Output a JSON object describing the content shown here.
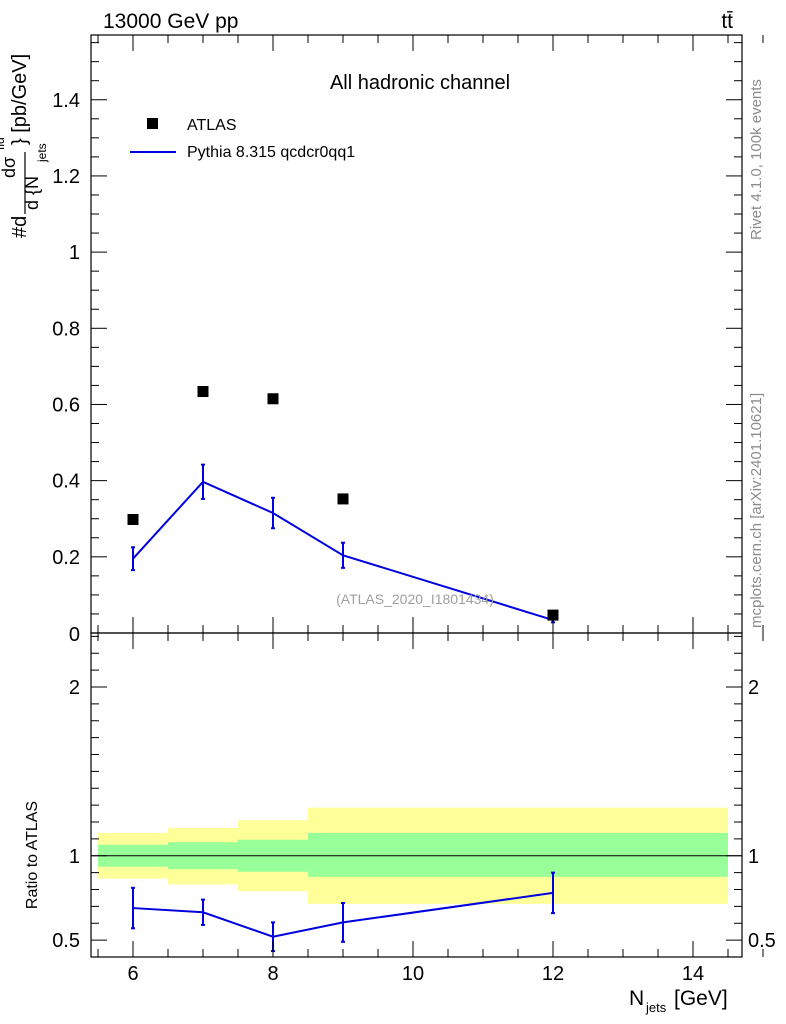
{
  "header": {
    "left": "13000 GeV pp",
    "right": "tt̄"
  },
  "side_text": {
    "rivet": "Rivet 4.1.0,  100k events",
    "mcplots": "mcplots.cern.ch [arXiv:2401.10621]"
  },
  "chart_data": [
    {
      "type": "scatter",
      "title": "All hadronic channel",
      "ylabel": {
        "prefix": "#d",
        "num": "dσ",
        "num_sup": "fid",
        "den": "d {N",
        "den_sub": "jets",
        "suffix": "} [pb/GeV]"
      },
      "xlim": [
        5.4,
        14.7
      ],
      "ylim": [
        0,
        1.57
      ],
      "yticks": [
        {
          "v": 0.2,
          "label": "0.2"
        },
        {
          "v": 0.4,
          "label": "0.4"
        },
        {
          "v": 0.6,
          "label": "0.6"
        },
        {
          "v": 0.8,
          "label": "0.8"
        },
        {
          "v": 1.0,
          "label": "1"
        },
        {
          "v": 1.2,
          "label": "1.2"
        },
        {
          "v": 1.4,
          "label": "1.4"
        }
      ],
      "series": [
        {
          "name": "ATLAS",
          "kind": "marker",
          "color": "#000000",
          "x": [
            6,
            7,
            8,
            9,
            12
          ],
          "y": [
            0.298,
            0.634,
            0.615,
            0.352,
            0.047
          ]
        },
        {
          "name": "Pythia 8.315 qcdcr0qq1",
          "kind": "line",
          "color": "#0000e0",
          "x": [
            6,
            7,
            8,
            9,
            12
          ],
          "y": [
            0.195,
            0.397,
            0.315,
            0.204,
            0.034
          ],
          "err": [
            0.03,
            0.045,
            0.04,
            0.033,
            0.006
          ]
        }
      ],
      "watermark": "(ATLAS_2020_I1801434)",
      "legend_position": "top-left"
    },
    {
      "type": "line",
      "ylabel": "Ratio to ATLAS",
      "xlabel": {
        "main": "N",
        "sub": "jets",
        "unit": " [GeV]"
      },
      "xlim": [
        5.4,
        14.7
      ],
      "ylim": [
        0.4,
        2.32
      ],
      "xticks": [
        {
          "v": 6,
          "label": "6"
        },
        {
          "v": 8,
          "label": "8"
        },
        {
          "v": 10,
          "label": "10"
        },
        {
          "v": 12,
          "label": "12"
        },
        {
          "v": 14,
          "label": "14"
        }
      ],
      "yticks": [
        {
          "v": 0.5,
          "label": "0.5"
        },
        {
          "v": 1,
          "label": "1"
        },
        {
          "v": 2,
          "label": "2"
        }
      ],
      "bands": [
        {
          "x0": 5.5,
          "x1": 6.5,
          "green": [
            0.935,
            1.065
          ],
          "yellow": [
            0.865,
            1.135
          ]
        },
        {
          "x0": 6.5,
          "x1": 7.5,
          "green": [
            0.92,
            1.08
          ],
          "yellow": [
            0.83,
            1.165
          ]
        },
        {
          "x0": 7.5,
          "x1": 8.5,
          "green": [
            0.905,
            1.095
          ],
          "yellow": [
            0.79,
            1.21
          ]
        },
        {
          "x0": 8.5,
          "x1": 14.5,
          "green": [
            0.875,
            1.135
          ],
          "yellow": [
            0.715,
            1.285
          ]
        }
      ],
      "series": [
        {
          "name": "Pythia 8.315 qcdcr0qq1 / ATLAS",
          "color": "#0000e0",
          "x": [
            6,
            7,
            8,
            9,
            12
          ],
          "y": [
            0.69,
            0.665,
            0.52,
            0.605,
            0.78
          ],
          "err": [
            0.12,
            0.075,
            0.085,
            0.115,
            0.12
          ]
        }
      ]
    }
  ]
}
